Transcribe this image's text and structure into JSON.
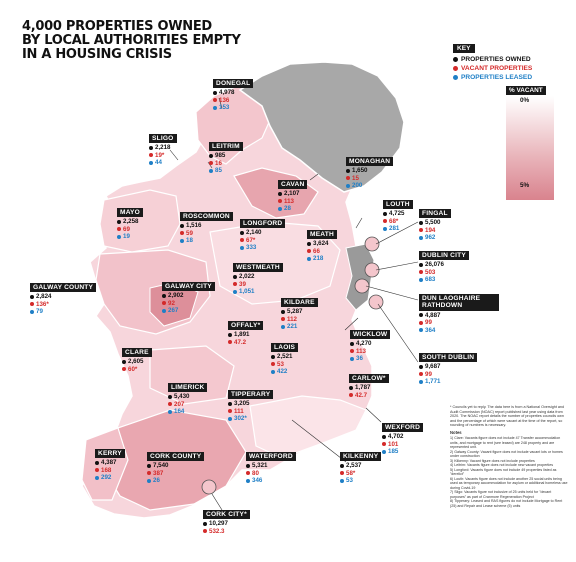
{
  "title_lines": [
    "4,000 PROPERTIES OWNED",
    "BY LOCAL AUTHORITIES EMPTY",
    "IN A HOUSING CRISIS"
  ],
  "key": {
    "heading": "KEY",
    "owned": "PROPERTIES OWNED",
    "vacant": "VACANT PROPERTIES",
    "leased": "PROPERTIES LEASED"
  },
  "scale": {
    "heading": "% VACANT",
    "min_label": "0%",
    "max_label": "5%",
    "min_value": 0,
    "max_value": 5
  },
  "colors": {
    "owned": "#111111",
    "vacant": "#d42a2a",
    "leased": "#1f7fc6",
    "northern_ireland": "#a8a8a8",
    "land_low": "#fbe3e6",
    "land_high": "#e69aa4"
  },
  "counties": [
    {
      "name": "DONEGAL",
      "owned": "4,978",
      "vacant": "136",
      "leased": "153"
    },
    {
      "name": "SLIGO",
      "owned": "2,218",
      "vacant": "19*",
      "leased": "44"
    },
    {
      "name": "LEITRIM",
      "owned": "985",
      "vacant": "16",
      "leased": "85"
    },
    {
      "name": "MONAGHAN",
      "owned": "1,650",
      "vacant": "15",
      "leased": "200"
    },
    {
      "name": "CAVAN",
      "owned": "2,107",
      "vacant": "113",
      "leased": "28"
    },
    {
      "name": "LOUTH",
      "owned": "4,725",
      "vacant": "68*",
      "leased": "281"
    },
    {
      "name": "MAYO",
      "owned": "2,258",
      "vacant": "69",
      "leased": "19"
    },
    {
      "name": "ROSCOMMON",
      "owned": "1,516",
      "vacant": "59",
      "leased": "18"
    },
    {
      "name": "LONGFORD",
      "owned": "2,140",
      "vacant": "67*",
      "leased": "333"
    },
    {
      "name": "MEATH",
      "owned": "3,624",
      "vacant": "66",
      "leased": "218"
    },
    {
      "name": "FINGAL",
      "owned": "5,500",
      "vacant": "194",
      "leased": "962"
    },
    {
      "name": "DUBLIN CITY",
      "owned": "26,076",
      "vacant": "503",
      "leased": "683"
    },
    {
      "name": "WESTMEATH",
      "owned": "2,022",
      "vacant": "39",
      "leased": "1,051"
    },
    {
      "name": "GALWAY COUNTY",
      "owned": "2,824",
      "vacant": "136*",
      "leased": "79"
    },
    {
      "name": "GALWAY CITY",
      "owned": "2,902",
      "vacant": "92",
      "leased": "267"
    },
    {
      "name": "KILDARE",
      "owned": "5,287",
      "vacant": "112",
      "leased": "221"
    },
    {
      "name": "DUN LAOGHAIRE RATHDOWN",
      "owned": "4,887",
      "vacant": "99",
      "leased": "364"
    },
    {
      "name": "OFFALY*",
      "owned": "1,891",
      "vacant": "47.2",
      "leased": ""
    },
    {
      "name": "WICKLOW",
      "owned": "4,270",
      "vacant": "113",
      "leased": "36"
    },
    {
      "name": "CLARE",
      "owned": "2,605",
      "vacant": "60*",
      "leased": ""
    },
    {
      "name": "LAOIS",
      "owned": "2,521",
      "vacant": "53",
      "leased": "422"
    },
    {
      "name": "SOUTH DUBLIN",
      "owned": "9,687",
      "vacant": "99",
      "leased": "1,771"
    },
    {
      "name": "CARLOW*",
      "owned": "1,787",
      "vacant": "42.7",
      "leased": ""
    },
    {
      "name": "LIMERICK",
      "owned": "5,430",
      "vacant": "207",
      "leased": "164"
    },
    {
      "name": "TIPPERARY",
      "owned": "3,205",
      "vacant": "111",
      "leased": "302*"
    },
    {
      "name": "WEXFORD",
      "owned": "4,702",
      "vacant": "101",
      "leased": "185"
    },
    {
      "name": "KERRY",
      "owned": "4,387",
      "vacant": "168",
      "leased": "292"
    },
    {
      "name": "CORK COUNTY",
      "owned": "7,540",
      "vacant": "387",
      "leased": "26"
    },
    {
      "name": "WATERFORD",
      "owned": "5,321",
      "vacant": "80",
      "leased": "346"
    },
    {
      "name": "KILKENNY",
      "owned": "2,537",
      "vacant": "58*",
      "leased": "53"
    },
    {
      "name": "CORK CITY*",
      "owned": "10,297",
      "vacant": "532.3",
      "leased": ""
    }
  ],
  "footnote": "* Councils yet to reply. The data here is from a National Oversight and Audit Commission (NOAC) report published last year using data from 2020. The NOAC report details the number of properties councils own and the percentage of which were vacant at the time of the report, so rounding of numbers is necessary.",
  "notes_heading": "Notes",
  "notes": [
    "1) Clare: Vacants figure does not include 47 Transfer accommodation units, and mortgage to rent (see leased) are 248 property and are represented unit.",
    "2) Galway County: Vacant figure does not include vacant lots or homes under construction",
    "3) Kilkenny: Vacant figure does not include properties",
    "4) Leitrim: Vacants figure does not include new vacant properties",
    "5) Longford: Vacants figure does not include 49 properties listed as \"derelict\"",
    "6) Louth: Vacants figure does not include another 25 social units being used as temporary accommodation for asylum or additional homeless use during Covid-19",
    "7) Sligo: Vacants figure not inclusive of 25 units held for \"decant purposes\" as part of Cranmore Regeneration Project",
    "8) Tipperary: Leased and RAS figures do not include Mortgage to Rent (25) and Repair and Lease scheme (5) units"
  ]
}
